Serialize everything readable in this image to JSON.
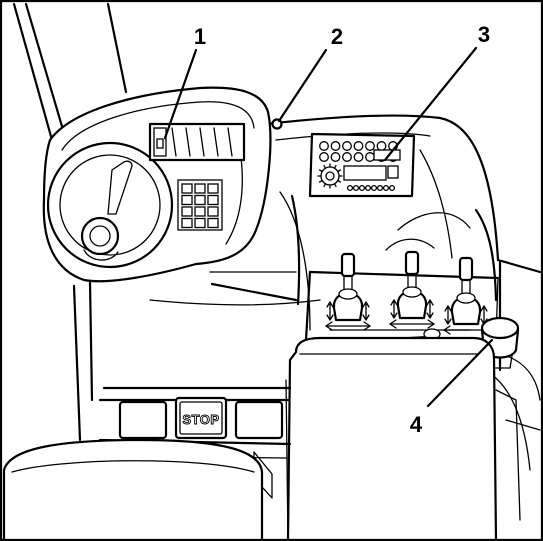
{
  "callouts": [
    {
      "id": "1",
      "label": "1"
    },
    {
      "id": "2",
      "label": "2"
    },
    {
      "id": "3",
      "label": "3"
    },
    {
      "id": "4",
      "label": "4"
    }
  ],
  "panel": {
    "stop_button_label": "STOP"
  },
  "colors": {
    "ink": "#000000",
    "paper": "#ffffff"
  }
}
